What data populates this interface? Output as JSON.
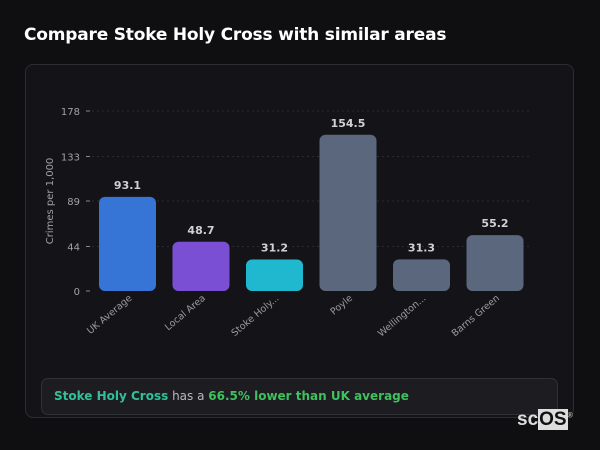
{
  "title": "Compare Stoke Holy Cross with similar areas",
  "chart_data": {
    "type": "bar",
    "ylabel": "Crimes per 1,000",
    "yticks": [
      0,
      44,
      89,
      133,
      178
    ],
    "ylim": [
      0,
      178
    ],
    "grid": true,
    "categories": [
      "UK Average",
      "Local Area",
      "Stoke Holy...",
      "Poyle",
      "Wellington...",
      "Barns Green"
    ],
    "values": [
      93.1,
      48.7,
      31.2,
      154.5,
      31.3,
      55.2
    ],
    "value_labels": [
      "93.1",
      "48.7",
      "31.2",
      "154.5",
      "31.3",
      "55.2"
    ],
    "colors": [
      "#3674d6",
      "#7b4fd4",
      "#1fb8cf",
      "#5a677c",
      "#5a677c",
      "#5a677c"
    ]
  },
  "summary": {
    "area": "Stoke Holy Cross",
    "middle": " has a ",
    "comparison": "66.5% lower than UK average"
  },
  "logo": {
    "text_a": "sc",
    "text_b": "OS",
    "mark": "®"
  }
}
